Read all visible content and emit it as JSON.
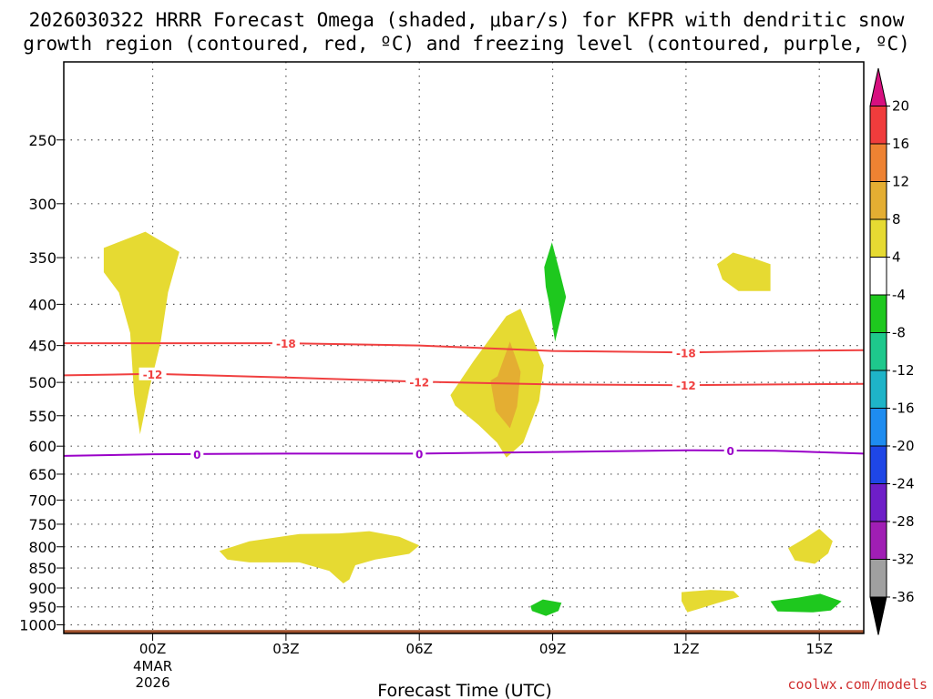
{
  "title": {
    "line1": "2026030322 HRRR Forecast Omega (shaded, μbar/s) for KFPR with dendritic snow",
    "line2": "growth region (contoured, red, ºC) and freezing level (contoured, purple, ºC)"
  },
  "credit": "coolwx.com/models",
  "chart_data": {
    "type": "time-height cross-section",
    "xlabel": "Forecast Time (UTC)",
    "x_range_hours": [
      -2,
      16
    ],
    "x_ticks": [
      {
        "hour": 0,
        "label": "00Z",
        "sub": [
          "4MAR",
          "2026"
        ]
      },
      {
        "hour": 3,
        "label": "03Z"
      },
      {
        "hour": 6,
        "label": "06Z"
      },
      {
        "hour": 9,
        "label": "09Z"
      },
      {
        "hour": 12,
        "label": "12Z"
      },
      {
        "hour": 15,
        "label": "15Z"
      }
    ],
    "y_ticks_hpa": [
      250,
      300,
      350,
      400,
      450,
      500,
      550,
      600,
      650,
      700,
      750,
      800,
      850,
      900,
      950,
      1000
    ],
    "y_range_hpa": [
      200,
      1025
    ],
    "grid": true,
    "colorbar": {
      "labels": [
        "20",
        "16",
        "12",
        "8",
        "4",
        "-4",
        "-8",
        "-12",
        "-16",
        "-20",
        "-24",
        "-28",
        "-32",
        "-36"
      ],
      "colors": [
        "#d7107f",
        "#f03c3c",
        "#ee8232",
        "#e4ae32",
        "#e6da32",
        "#ffffff",
        "#1ec81e",
        "#1ec88c",
        "#1eb4c8",
        "#1e8cf0",
        "#1e46e6",
        "#6e1ec8",
        "#a01eb4",
        "#a0a0a0",
        "#000000"
      ]
    },
    "omega_regions": [
      {
        "value_range": "4 to 8",
        "color": "#e6da32",
        "hours": [
          -1.1,
          0.6
        ],
        "hpa": [
          325,
          580
        ]
      },
      {
        "value_range": "4 to 8",
        "color": "#e6da32",
        "hours": [
          6.7,
          8.8
        ],
        "hpa": [
          405,
          620
        ]
      },
      {
        "value_range": "8 to 12",
        "color": "#e4ae32",
        "hours": [
          7.6,
          8.4
        ],
        "hpa": [
          445,
          570
        ]
      },
      {
        "value_range": "-4 to -8",
        "color": "#1ec81e",
        "hours": [
          8.6,
          9.3
        ],
        "hpa": [
          335,
          445
        ]
      },
      {
        "value_range": "4 to 8",
        "color": "#e6da32",
        "hours": [
          12.7,
          13.9
        ],
        "hpa": [
          345,
          385
        ]
      },
      {
        "value_range": "4 to 8",
        "color": "#e6da32",
        "hours": [
          1.5,
          6.0
        ],
        "hpa": [
          765,
          900
        ]
      },
      {
        "value_range": "4 to 8",
        "color": "#e6da32",
        "hours": [
          11.9,
          13.2
        ],
        "hpa": [
          905,
          965
        ]
      },
      {
        "value_range": "-4 to -8",
        "color": "#1ec81e",
        "hours": [
          8.5,
          9.2
        ],
        "hpa": [
          930,
          975
        ]
      },
      {
        "value_range": "4 to 8",
        "color": "#e6da32",
        "hours": [
          14.3,
          15.3
        ],
        "hpa": [
          760,
          840
        ]
      },
      {
        "value_range": "-4 to -8",
        "color": "#1ec81e",
        "hours": [
          13.9,
          15.5
        ],
        "hpa": [
          915,
          965
        ]
      }
    ],
    "contours": [
      {
        "level": "-18",
        "color": "#f04040",
        "points": [
          [
            -2,
            447
          ],
          [
            0,
            447
          ],
          [
            3,
            447
          ],
          [
            6,
            450
          ],
          [
            9,
            457
          ],
          [
            12,
            459
          ],
          [
            14,
            457
          ],
          [
            16,
            456
          ]
        ],
        "labels_at_hours": [
          3,
          12
        ]
      },
      {
        "level": "-12",
        "color": "#f04040",
        "points": [
          [
            -2,
            490
          ],
          [
            0,
            488
          ],
          [
            3,
            493
          ],
          [
            6,
            499
          ],
          [
            9,
            503
          ],
          [
            12,
            504
          ],
          [
            14,
            503
          ],
          [
            16,
            502
          ]
        ],
        "labels_at_hours": [
          0,
          6,
          12
        ]
      },
      {
        "level": "0",
        "color": "#9a00c8",
        "points": [
          [
            -2,
            617
          ],
          [
            0,
            614
          ],
          [
            3,
            613
          ],
          [
            6,
            613
          ],
          [
            9,
            610
          ],
          [
            12,
            607
          ],
          [
            14,
            608
          ],
          [
            16,
            613
          ]
        ],
        "labels_at_hours": [
          1,
          6,
          13
        ]
      }
    ],
    "terrain": {
      "color": "#a0522d",
      "surface_hpa": 1015
    }
  }
}
